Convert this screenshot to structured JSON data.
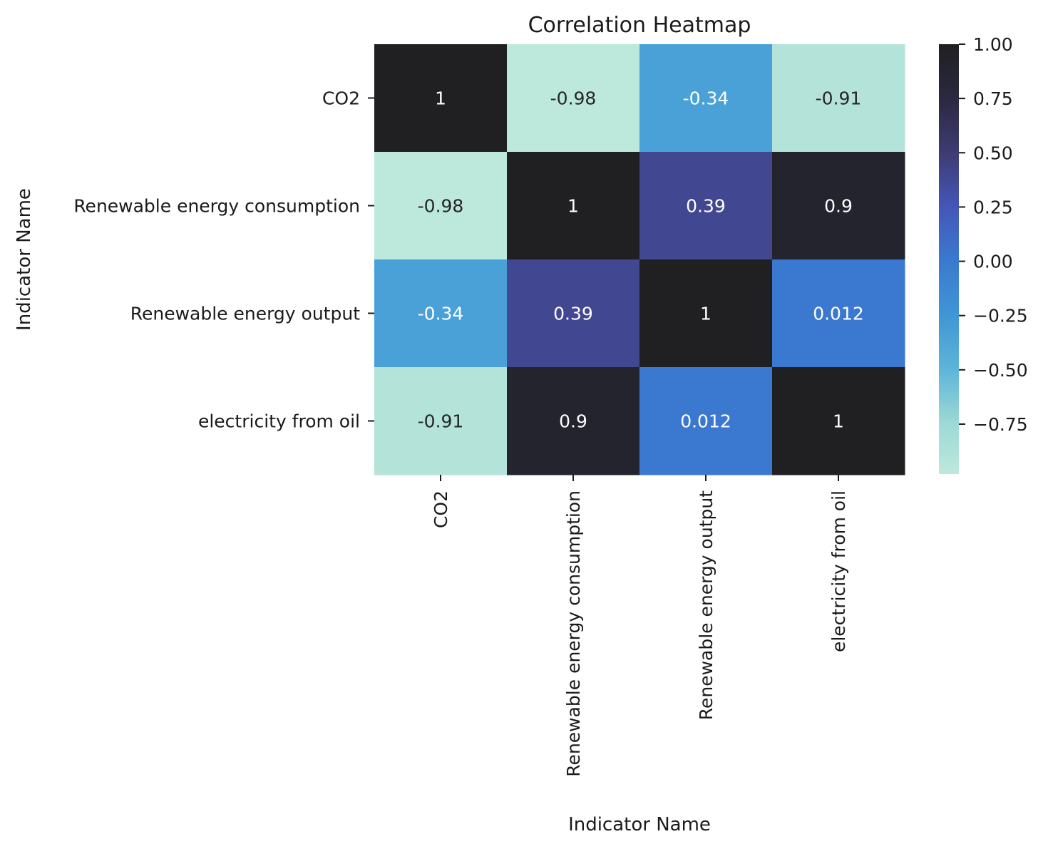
{
  "chart_data": {
    "type": "heatmap",
    "title": "Correlation Heatmap",
    "xlabel": "Indicator Name",
    "ylabel": "Indicator Name",
    "rows": [
      "CO2",
      "Renewable energy consumption",
      "Renewable energy output",
      "electricity from oil"
    ],
    "columns": [
      "CO2",
      "Renewable energy consumption",
      "Renewable energy output",
      "electricity from oil"
    ],
    "values": [
      [
        1,
        -0.98,
        -0.34,
        -0.91
      ],
      [
        -0.98,
        1,
        0.39,
        0.9
      ],
      [
        -0.34,
        0.39,
        1,
        0.012
      ],
      [
        -0.91,
        0.9,
        0.012,
        1
      ]
    ],
    "cell_labels": [
      [
        "1",
        "-0.98",
        "-0.34",
        "-0.91"
      ],
      [
        "-0.98",
        "1",
        "0.39",
        "0.9"
      ],
      [
        "-0.34",
        "0.39",
        "1",
        "0.012"
      ],
      [
        "-0.91",
        "0.9",
        "0.012",
        "1"
      ]
    ],
    "colorbar": {
      "range": [
        -0.98,
        1.0
      ],
      "ticks": [
        1.0,
        0.75,
        0.5,
        0.25,
        0.0,
        -0.25,
        -0.5,
        -0.75
      ],
      "tick_labels": [
        "1.00",
        "0.75",
        "0.50",
        "0.25",
        "0.00",
        "−0.25",
        "−0.50",
        "−0.75"
      ],
      "colors": [
        {
          "value": -0.98,
          "color": "#bde8dc"
        },
        {
          "value": -0.75,
          "color": "#9ed9d6"
        },
        {
          "value": -0.5,
          "color": "#5eb5d8"
        },
        {
          "value": -0.25,
          "color": "#3f96d6"
        },
        {
          "value": 0.0,
          "color": "#3a7ad0"
        },
        {
          "value": 0.25,
          "color": "#4556b8"
        },
        {
          "value": 0.5,
          "color": "#3e3b73"
        },
        {
          "value": 0.75,
          "color": "#2a2940"
        },
        {
          "value": 1.0,
          "color": "#202022"
        }
      ]
    }
  }
}
